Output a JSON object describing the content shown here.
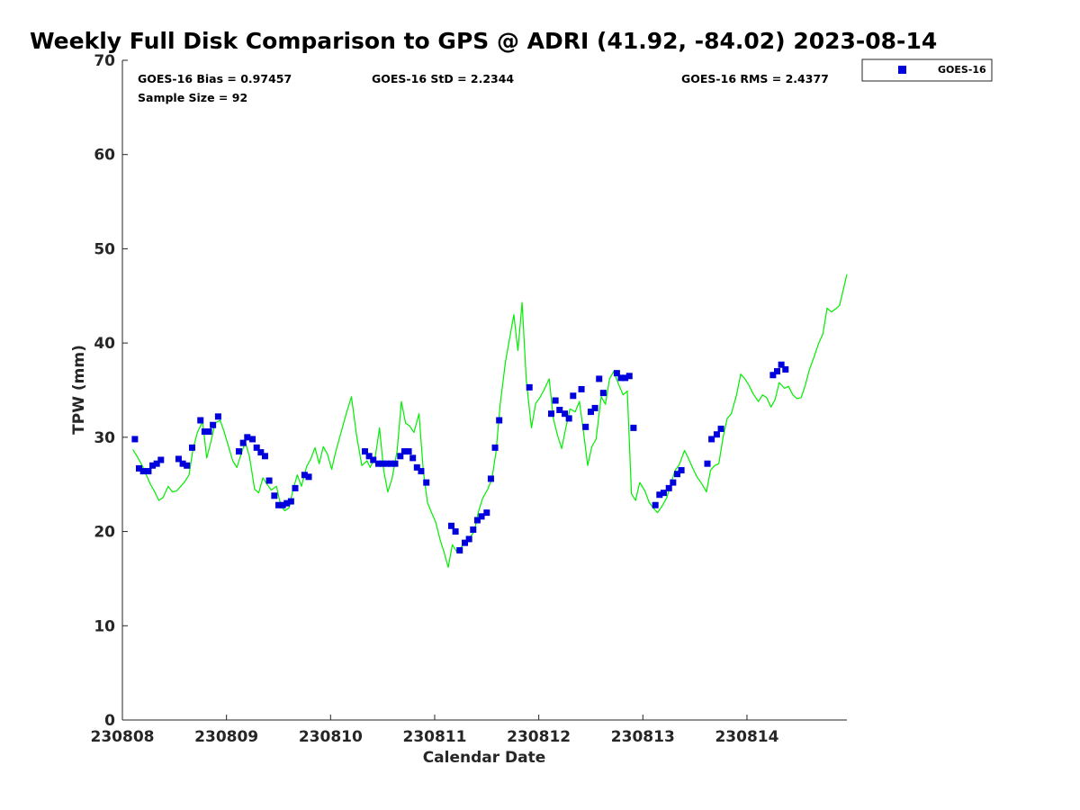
{
  "chart_data": {
    "type": "scatter",
    "title": "Weekly Full Disk Comparison to GPS @ ADRI (41.92, -84.02) 2023-08-14",
    "xlabel": "Calendar Date",
    "ylabel": "TPW (mm)",
    "x_ticks": [
      "230808",
      "230809",
      "230810",
      "230811",
      "230812",
      "230813",
      "230814"
    ],
    "y_ticks": [
      "0",
      "10",
      "20",
      "30",
      "40",
      "50",
      "60",
      "70"
    ],
    "xlim": [
      0,
      6.96
    ],
    "ylim": [
      0,
      70
    ],
    "x_unit": "days since 230808 00Z",
    "grid": false,
    "legend": {
      "position": "top-right",
      "entries": [
        "GOES-16"
      ]
    },
    "stats": {
      "bias": "GOES-16 Bias = 0.97457",
      "std": "GOES-16 StD = 2.2344",
      "rms": "GOES-16 RMS = 2.4377",
      "sample": "Sample Size = 92"
    },
    "series": [
      {
        "name": "GOES-16",
        "kind": "markers",
        "color": "#0000dd",
        "marker": "square",
        "points": [
          [
            0.12,
            29.8
          ],
          [
            0.16,
            26.7
          ],
          [
            0.2,
            26.4
          ],
          [
            0.25,
            26.4
          ],
          [
            0.29,
            27.0
          ],
          [
            0.33,
            27.2
          ],
          [
            0.37,
            27.6
          ],
          [
            0.54,
            27.7
          ],
          [
            0.58,
            27.2
          ],
          [
            0.62,
            27.0
          ],
          [
            0.67,
            28.9
          ],
          [
            0.75,
            31.8
          ],
          [
            0.79,
            30.6
          ],
          [
            0.83,
            30.6
          ],
          [
            0.87,
            31.3
          ],
          [
            0.92,
            32.2
          ],
          [
            1.12,
            28.5
          ],
          [
            1.16,
            29.4
          ],
          [
            1.2,
            30.0
          ],
          [
            1.25,
            29.8
          ],
          [
            1.29,
            28.9
          ],
          [
            1.33,
            28.4
          ],
          [
            1.37,
            28.0
          ],
          [
            1.41,
            25.4
          ],
          [
            1.46,
            23.8
          ],
          [
            1.5,
            22.8
          ],
          [
            1.54,
            22.8
          ],
          [
            1.58,
            23.0
          ],
          [
            1.62,
            23.2
          ],
          [
            1.66,
            24.6
          ],
          [
            1.75,
            26.0
          ],
          [
            1.79,
            25.8
          ],
          [
            2.33,
            28.5
          ],
          [
            2.37,
            28.0
          ],
          [
            2.41,
            27.6
          ],
          [
            2.46,
            27.2
          ],
          [
            2.5,
            27.2
          ],
          [
            2.54,
            27.2
          ],
          [
            2.58,
            27.2
          ],
          [
            2.62,
            27.2
          ],
          [
            2.67,
            28.0
          ],
          [
            2.71,
            28.5
          ],
          [
            2.75,
            28.5
          ],
          [
            2.79,
            27.8
          ],
          [
            2.83,
            26.8
          ],
          [
            2.87,
            26.4
          ],
          [
            2.92,
            25.2
          ],
          [
            3.16,
            20.6
          ],
          [
            3.2,
            20.0
          ],
          [
            3.24,
            18.0
          ],
          [
            3.29,
            18.8
          ],
          [
            3.33,
            19.2
          ],
          [
            3.37,
            20.2
          ],
          [
            3.41,
            21.2
          ],
          [
            3.45,
            21.6
          ],
          [
            3.5,
            22.0
          ],
          [
            3.54,
            25.6
          ],
          [
            3.58,
            28.9
          ],
          [
            3.62,
            31.8
          ],
          [
            3.91,
            35.3
          ],
          [
            4.12,
            32.5
          ],
          [
            4.16,
            33.9
          ],
          [
            4.2,
            32.9
          ],
          [
            4.25,
            32.5
          ],
          [
            4.29,
            32.0
          ],
          [
            4.33,
            34.4
          ],
          [
            4.41,
            35.1
          ],
          [
            4.45,
            31.1
          ],
          [
            4.5,
            32.7
          ],
          [
            4.54,
            33.1
          ],
          [
            4.58,
            36.2
          ],
          [
            4.62,
            34.7
          ],
          [
            4.75,
            36.8
          ],
          [
            4.79,
            36.3
          ],
          [
            4.83,
            36.3
          ],
          [
            4.87,
            36.5
          ],
          [
            4.91,
            31.0
          ],
          [
            5.12,
            22.8
          ],
          [
            5.16,
            23.9
          ],
          [
            5.2,
            24.1
          ],
          [
            5.25,
            24.6
          ],
          [
            5.29,
            25.2
          ],
          [
            5.33,
            26.1
          ],
          [
            5.37,
            26.5
          ],
          [
            5.62,
            27.2
          ],
          [
            5.66,
            29.8
          ],
          [
            5.71,
            30.3
          ],
          [
            5.75,
            30.9
          ],
          [
            6.25,
            36.6
          ],
          [
            6.29,
            37.0
          ],
          [
            6.33,
            37.7
          ],
          [
            6.37,
            37.2
          ]
        ]
      },
      {
        "name": "GPS",
        "kind": "line",
        "color": "#00ee00",
        "points": [
          [
            0.1,
            28.7
          ],
          [
            0.14,
            28.0
          ],
          [
            0.19,
            27.0
          ],
          [
            0.23,
            26.0
          ],
          [
            0.27,
            25.0
          ],
          [
            0.31,
            24.2
          ],
          [
            0.35,
            23.3
          ],
          [
            0.39,
            23.6
          ],
          [
            0.44,
            24.8
          ],
          [
            0.48,
            24.2
          ],
          [
            0.52,
            24.3
          ],
          [
            0.56,
            24.8
          ],
          [
            0.6,
            25.3
          ],
          [
            0.64,
            26.0
          ],
          [
            0.68,
            28.8
          ],
          [
            0.72,
            30.5
          ],
          [
            0.77,
            31.7
          ],
          [
            0.81,
            27.8
          ],
          [
            0.85,
            29.5
          ],
          [
            0.89,
            31.5
          ],
          [
            0.94,
            31.8
          ],
          [
            0.98,
            30.5
          ],
          [
            1.02,
            29.0
          ],
          [
            1.06,
            27.5
          ],
          [
            1.1,
            26.8
          ],
          [
            1.14,
            28.2
          ],
          [
            1.18,
            29.5
          ],
          [
            1.22,
            28.0
          ],
          [
            1.27,
            24.5
          ],
          [
            1.31,
            24.1
          ],
          [
            1.35,
            25.7
          ],
          [
            1.39,
            25.0
          ],
          [
            1.43,
            24.4
          ],
          [
            1.48,
            24.8
          ],
          [
            1.52,
            22.8
          ],
          [
            1.56,
            22.2
          ],
          [
            1.6,
            22.5
          ],
          [
            1.64,
            24.5
          ],
          [
            1.68,
            26.0
          ],
          [
            1.72,
            24.8
          ],
          [
            1.77,
            26.9
          ],
          [
            1.81,
            27.7
          ],
          [
            1.85,
            28.9
          ],
          [
            1.89,
            27.2
          ],
          [
            1.93,
            29.0
          ],
          [
            1.97,
            28.2
          ],
          [
            2.01,
            26.6
          ],
          [
            2.05,
            28.5
          ],
          [
            2.1,
            30.5
          ],
          [
            2.15,
            32.5
          ],
          [
            2.2,
            34.3
          ],
          [
            2.25,
            30.2
          ],
          [
            2.3,
            27.0
          ],
          [
            2.35,
            27.5
          ],
          [
            2.38,
            26.8
          ],
          [
            2.43,
            28.0
          ],
          [
            2.47,
            31.0
          ],
          [
            2.51,
            26.5
          ],
          [
            2.55,
            24.2
          ],
          [
            2.59,
            25.6
          ],
          [
            2.64,
            28.6
          ],
          [
            2.68,
            33.8
          ],
          [
            2.72,
            31.5
          ],
          [
            2.76,
            31.2
          ],
          [
            2.8,
            30.5
          ],
          [
            2.85,
            32.5
          ],
          [
            2.89,
            26.5
          ],
          [
            2.93,
            23.1
          ],
          [
            2.97,
            22.0
          ],
          [
            3.01,
            21.0
          ],
          [
            3.05,
            19.2
          ],
          [
            3.09,
            17.8
          ],
          [
            3.13,
            16.2
          ],
          [
            3.17,
            18.6
          ],
          [
            3.21,
            17.9
          ],
          [
            3.26,
            18.4
          ],
          [
            3.3,
            19.1
          ],
          [
            3.34,
            19.4
          ],
          [
            3.38,
            20.0
          ],
          [
            3.42,
            22.1
          ],
          [
            3.46,
            23.5
          ],
          [
            3.51,
            24.5
          ],
          [
            3.55,
            25.6
          ],
          [
            3.59,
            28.5
          ],
          [
            3.63,
            33.5
          ],
          [
            3.68,
            38.0
          ],
          [
            3.72,
            40.5
          ],
          [
            3.76,
            43.0
          ],
          [
            3.8,
            39.2
          ],
          [
            3.84,
            44.3
          ],
          [
            3.88,
            36.0
          ],
          [
            3.93,
            31.0
          ],
          [
            3.97,
            33.6
          ],
          [
            4.01,
            34.2
          ],
          [
            4.05,
            35.0
          ],
          [
            4.1,
            36.2
          ],
          [
            4.14,
            32.0
          ],
          [
            4.18,
            30.2
          ],
          [
            4.22,
            28.8
          ],
          [
            4.26,
            31.0
          ],
          [
            4.3,
            33.0
          ],
          [
            4.35,
            32.7
          ],
          [
            4.39,
            33.8
          ],
          [
            4.43,
            30.5
          ],
          [
            4.47,
            27.0
          ],
          [
            4.51,
            29.0
          ],
          [
            4.55,
            29.8
          ],
          [
            4.6,
            34.3
          ],
          [
            4.64,
            33.5
          ],
          [
            4.68,
            36.2
          ],
          [
            4.72,
            37.0
          ],
          [
            4.76,
            35.8
          ],
          [
            4.81,
            34.5
          ],
          [
            4.85,
            34.9
          ],
          [
            4.89,
            24.0
          ],
          [
            4.93,
            23.3
          ],
          [
            4.97,
            25.2
          ],
          [
            5.02,
            24.3
          ],
          [
            5.06,
            23.1
          ],
          [
            5.1,
            22.5
          ],
          [
            5.14,
            22.0
          ],
          [
            5.18,
            22.6
          ],
          [
            5.23,
            23.6
          ],
          [
            5.27,
            25.1
          ],
          [
            5.31,
            26.5
          ],
          [
            5.35,
            27.1
          ],
          [
            5.4,
            28.6
          ],
          [
            5.44,
            27.7
          ],
          [
            5.48,
            26.7
          ],
          [
            5.52,
            25.8
          ],
          [
            5.57,
            25.0
          ],
          [
            5.61,
            24.2
          ],
          [
            5.65,
            26.5
          ],
          [
            5.69,
            27.0
          ],
          [
            5.73,
            27.2
          ],
          [
            5.77,
            30.0
          ],
          [
            5.81,
            32.0
          ],
          [
            5.85,
            32.5
          ],
          [
            5.9,
            34.5
          ],
          [
            5.94,
            36.7
          ],
          [
            5.98,
            36.2
          ],
          [
            6.02,
            35.5
          ],
          [
            6.06,
            34.6
          ],
          [
            6.11,
            33.8
          ],
          [
            6.15,
            34.5
          ],
          [
            6.19,
            34.2
          ],
          [
            6.23,
            33.2
          ],
          [
            6.27,
            34.0
          ],
          [
            6.31,
            35.8
          ],
          [
            6.36,
            35.2
          ],
          [
            6.4,
            35.4
          ],
          [
            6.44,
            34.5
          ],
          [
            6.48,
            34.1
          ],
          [
            6.52,
            34.2
          ],
          [
            6.56,
            35.5
          ],
          [
            6.6,
            37.2
          ],
          [
            6.64,
            38.4
          ],
          [
            6.69,
            40.0
          ],
          [
            6.73,
            41.0
          ],
          [
            6.77,
            43.7
          ],
          [
            6.81,
            43.3
          ],
          [
            6.85,
            43.6
          ],
          [
            6.89,
            44.0
          ],
          [
            6.96,
            47.3
          ]
        ]
      }
    ]
  }
}
